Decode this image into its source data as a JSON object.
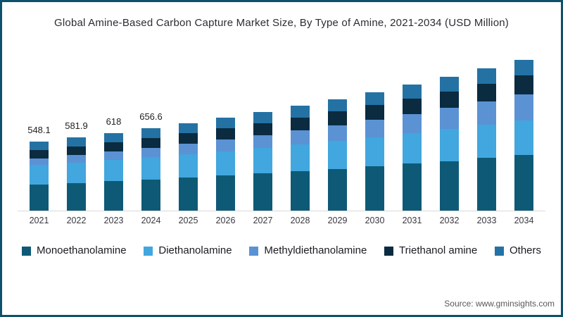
{
  "title": "Global Amine-Based Carbon Capture Market Size, By Type of Amine, 2021-2034 (USD Million)",
  "source": "Source: www.gminsights.com",
  "colors": {
    "border": "#0e516b",
    "axis_line": "#d9d9d9",
    "title_text": "#2b2b35",
    "year_label_text": "#38383f",
    "total_label_text": "#222222",
    "legend_text": "#1a1a22",
    "source_text": "#595959"
  },
  "chart_data": {
    "type": "bar",
    "stacked": true,
    "title": "Global Amine-Based Carbon Capture Market Size, By Type of Amine, 2021-2034 (USD Million)",
    "xlabel": "",
    "ylabel": "USD Million",
    "legend_position": "bottom",
    "grid": false,
    "categories": [
      "2021",
      "2022",
      "2023",
      "2024",
      "2025",
      "2026",
      "2027",
      "2028",
      "2029",
      "2030",
      "2031",
      "2032",
      "2033",
      "2034"
    ],
    "series": [
      {
        "name": "Monoethanolamine",
        "color": "#0e5a76",
        "values": [
          208.3,
          220.7,
          233.9,
          248.0,
          262.7,
          278.4,
          295.1,
          312.8,
          331.6,
          351.4,
          372.7,
          394.9,
          418.6,
          443.6
        ]
      },
      {
        "name": "Diethanolamine",
        "color": "#41a7de",
        "values": [
          153.5,
          160.7,
          168.3,
          176.3,
          184.4,
          193.0,
          201.9,
          211.3,
          221.1,
          231.2,
          241.8,
          252.7,
          264.0,
          275.8
        ]
      },
      {
        "name": "Methyldiethanolamine",
        "color": "#5b92d4",
        "values": [
          54.8,
          61.3,
          68.5,
          76.3,
          84.7,
          93.9,
          104.0,
          115.0,
          126.9,
          139.9,
          154.0,
          169.3,
          185.9,
          203.8
        ]
      },
      {
        "name": "Triethanol amine",
        "color": "#0a2b40",
        "values": [
          63.0,
          67.4,
          72.0,
          77.0,
          82.3,
          87.9,
          94.0,
          100.5,
          107.5,
          114.8,
          122.8,
          131.2,
          140.3,
          149.9
        ]
      },
      {
        "name": "Others",
        "color": "#2472a4",
        "values": [
          68.5,
          71.8,
          75.3,
          79.0,
          82.8,
          86.8,
          91.0,
          95.4,
          100.0,
          104.7,
          109.7,
          114.9,
          120.3,
          125.9
        ]
      }
    ],
    "totals": [
      548.1,
      581.9,
      618,
      656.6,
      697,
      740,
      786,
      835,
      887,
      942,
      1001,
      1063,
      1129,
      1199
    ],
    "total_labels": [
      "548.1",
      "581.9",
      "618",
      "656.6",
      "",
      "",
      "",
      "",
      "",
      "",
      "",
      "",
      "",
      ""
    ]
  }
}
